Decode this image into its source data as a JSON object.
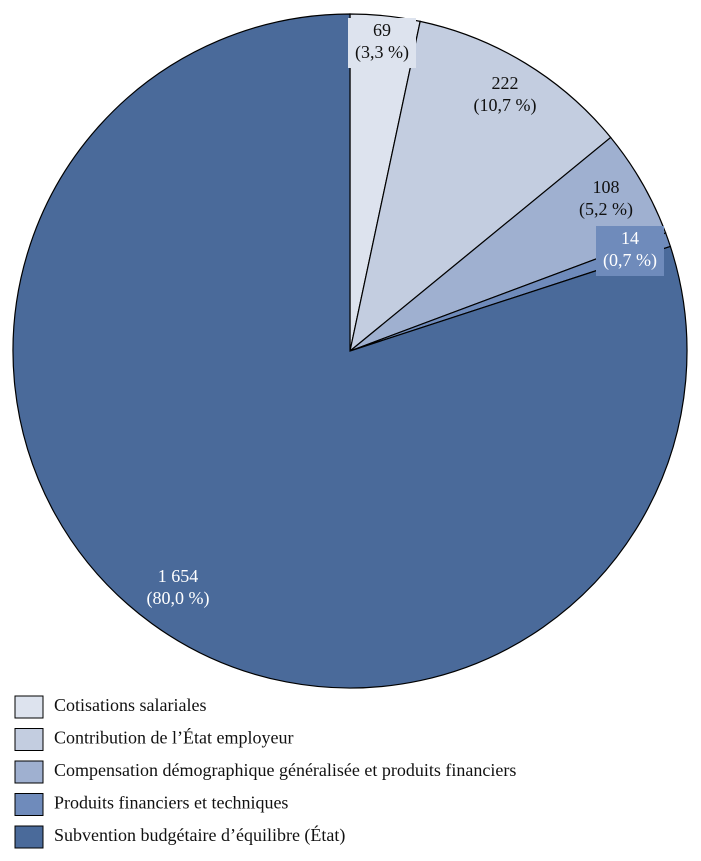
{
  "chart_data": {
    "type": "pie",
    "categories": [
      "Cotisations salariales",
      "Contribution de l’État employeur",
      "Compensation démographique généralisée et produits financiers",
      "Produits financiers et techniques",
      "Subvention budgétaire d’équilibre (État)"
    ],
    "values": [
      69,
      222,
      108,
      14,
      1654
    ],
    "value_labels": [
      "69",
      "222",
      "108",
      "14",
      "1 654"
    ],
    "percents": [
      3.3,
      10.7,
      5.2,
      0.7,
      80.0
    ],
    "percent_labels": [
      "(3,3 %)",
      "(10,7 %)",
      "(5,2 %)",
      "(0,7 %)",
      "(80,0 %)"
    ],
    "colors": [
      "#dde3ee",
      "#c3cde0",
      "#9fb0d0",
      "#6f8bbb",
      "#4a6a9a"
    ]
  }
}
